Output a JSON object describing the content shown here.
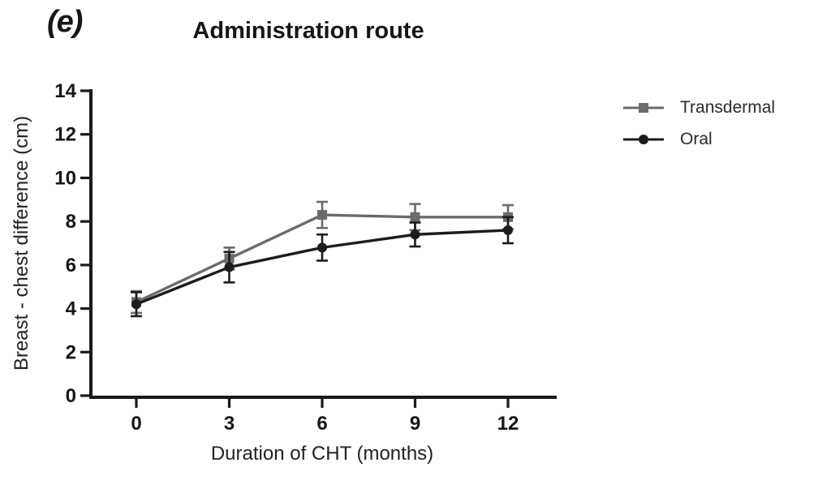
{
  "panel_label": "(e)",
  "title": "Administration route",
  "legend": {
    "items": [
      {
        "label": "Transdermal",
        "marker": "square",
        "color": "#6b6b6b"
      },
      {
        "label": "Oral",
        "marker": "circle",
        "color": "#1c1c1c"
      }
    ]
  },
  "chart_data": {
    "type": "line",
    "title": "Administration route",
    "xlabel": "Duration of CHT (months)",
    "ylabel": "Breast - chest difference (cm)",
    "x": [
      0,
      3,
      6,
      9,
      12
    ],
    "xticks": [
      "0",
      "3",
      "6",
      "9",
      "12"
    ],
    "yticks": [
      "0",
      "2",
      "4",
      "6",
      "8",
      "10",
      "12",
      "14"
    ],
    "xlim": [
      0,
      12
    ],
    "ylim": [
      0,
      14
    ],
    "grid": false,
    "error_bars": true,
    "legend_position": "right",
    "axis_color": "#1a1a1a",
    "series": [
      {
        "name": "Transdermal",
        "marker": "square",
        "color": "#6b6b6b",
        "values": [
          4.3,
          6.3,
          8.3,
          8.2,
          8.2
        ],
        "errors": [
          0.5,
          0.5,
          0.6,
          0.6,
          0.55
        ]
      },
      {
        "name": "Oral",
        "marker": "circle",
        "color": "#1c1c1c",
        "values": [
          4.2,
          5.9,
          6.8,
          7.4,
          7.6
        ],
        "errors": [
          0.55,
          0.7,
          0.6,
          0.55,
          0.6
        ]
      }
    ]
  }
}
